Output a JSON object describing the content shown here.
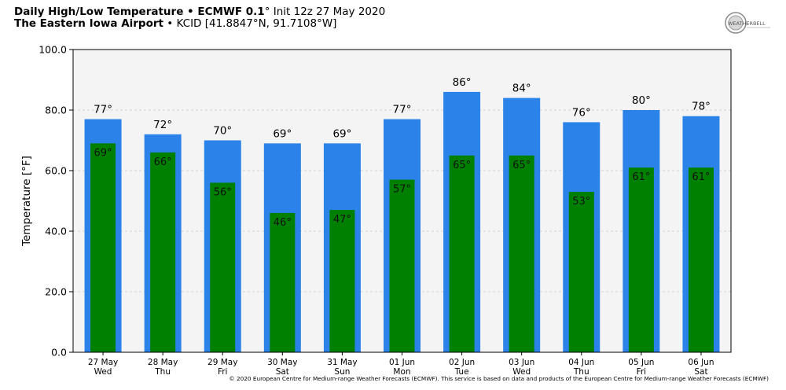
{
  "header": {
    "title_bold": "Daily High/Low Temperature • ECMWF 0.1",
    "title_deg": "°",
    "title_rest": " Init 12z 27 May 2020",
    "location_bold": "The Eastern Iowa Airport",
    "location_rest": " • KCID [41.8847°N, 91.7108°W]"
  },
  "logo": {
    "text": "WEATHERBELL"
  },
  "footer": {
    "copyright": "© 2020 European Centre for Medium-range Weather Forecasts (ECMWF). This service is based on data and products of the European Centre for Medium-range Weather Forecasts (ECMWF)"
  },
  "colors": {
    "high": "#2b82e8",
    "low": "#008000",
    "plot_bg": "#f4f4f4",
    "grid": "#c8c8c8"
  },
  "chart_data": {
    "type": "bar",
    "ylabel": "Temperature [°F]",
    "ylim": [
      0,
      100
    ],
    "yticks": [
      "0.0",
      "20.0",
      "40.0",
      "60.0",
      "80.0",
      "100.0"
    ],
    "grid": true,
    "categories": [
      "27 May",
      "28 May",
      "29 May",
      "30 May",
      "31 May",
      "01 Jun",
      "02 Jun",
      "03 Jun",
      "04 Jun",
      "05 Jun",
      "06 Jun"
    ],
    "weekdays": [
      "Wed",
      "Thu",
      "Fri",
      "Sat",
      "Sun",
      "Mon",
      "Tue",
      "Wed",
      "Thu",
      "Fri",
      "Sat"
    ],
    "series": [
      {
        "key": "high",
        "values": [
          77,
          72,
          70,
          69,
          69,
          77,
          86,
          84,
          76,
          80,
          78
        ],
        "labels": [
          "77°",
          "72°",
          "70°",
          "69°",
          "69°",
          "77°",
          "86°",
          "84°",
          "76°",
          "80°",
          "78°"
        ]
      },
      {
        "key": "low",
        "values": [
          69,
          66,
          56,
          46,
          47,
          57,
          65,
          65,
          53,
          61,
          61
        ],
        "labels": [
          "69°",
          "66°",
          "56°",
          "46°",
          "47°",
          "57°",
          "65°",
          "65°",
          "53°",
          "61°",
          "61°"
        ]
      }
    ]
  }
}
